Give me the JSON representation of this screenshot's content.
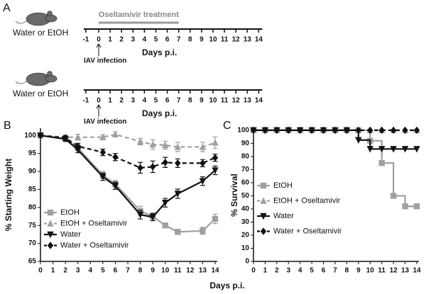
{
  "panel_a": {
    "label": "A",
    "rows": [
      {
        "subject": "Water or EtOH",
        "treatment": "Oseltamivir treatment",
        "treatment_days": [
          0,
          7
        ],
        "infection": "IAV infection",
        "axis_label": "Days p.i.",
        "ticks": [
          -1,
          0,
          1,
          2,
          3,
          4,
          5,
          6,
          7,
          8,
          9,
          10,
          11,
          12,
          13,
          14
        ]
      },
      {
        "subject": "Water or EtOH",
        "infection": "IAV infection",
        "axis_label": "Days p.i.",
        "ticks": [
          -1,
          0,
          1,
          2,
          3,
          4,
          5,
          6,
          7,
          8,
          9,
          10,
          11,
          12,
          13,
          14
        ]
      }
    ]
  },
  "chart_data": [
    {
      "type": "line",
      "panel": "B",
      "y_label": "% Starting Weight",
      "x_label": "Days p.i.",
      "x": [
        0,
        2,
        3,
        5,
        6,
        8,
        9,
        10,
        11,
        13,
        14
      ],
      "xlim": [
        0,
        14
      ],
      "xticks": [
        0,
        1,
        2,
        3,
        4,
        5,
        6,
        7,
        8,
        9,
        10,
        11,
        12,
        13,
        14
      ],
      "ylim": [
        65,
        102
      ],
      "yticks": [
        65,
        70,
        75,
        80,
        85,
        90,
        95,
        100
      ],
      "legend": "lower left",
      "series": [
        {
          "name": "EtOH",
          "color": "#a0a0a0",
          "marker": "square",
          "dash": false,
          "values": [
            100,
            99,
            96.5,
            89,
            86.5,
            79,
            77.5,
            75,
            73.2,
            73.5,
            76.8
          ],
          "errors": [
            0.3,
            0.6,
            0.8,
            1,
            1,
            1.3,
            1,
            0.4,
            0.5,
            1,
            1.3
          ]
        },
        {
          "name": "EtOH + Oseltamivir",
          "color": "#a0a0a0",
          "marker": "triangle-up",
          "dash": true,
          "values": [
            100,
            99.5,
            99.5,
            99.5,
            100.3,
            98.3,
            97.5,
            97.3,
            96.8,
            96.8,
            98
          ],
          "errors": [
            0.3,
            0.6,
            0.8,
            0.7,
            0.7,
            0.9,
            1.3,
            1.1,
            1.3,
            1.3,
            1.6
          ]
        },
        {
          "name": "Water",
          "color": "#111111",
          "marker": "triangle-down",
          "dash": false,
          "values": [
            100,
            99,
            96,
            88.5,
            86,
            78,
            77.3,
            81.3,
            83.8,
            87.3,
            90.3
          ],
          "errors": [
            0.3,
            0.6,
            0.8,
            1,
            1,
            1.2,
            1,
            1.2,
            1.3,
            1.2,
            1.2
          ]
        },
        {
          "name": "Water + Oseltamivir",
          "color": "#111111",
          "marker": "diamond",
          "dash": true,
          "values": [
            100,
            99.3,
            97,
            95.3,
            94,
            91,
            91.3,
            92.5,
            92.3,
            92.3,
            93.8
          ],
          "errors": [
            0.3,
            0.6,
            0.8,
            0.9,
            1,
            1.5,
            1.6,
            1.4,
            1.2,
            1,
            1
          ]
        }
      ]
    },
    {
      "type": "step",
      "panel": "C",
      "y_label": "% Survival",
      "x": [
        0,
        1,
        2,
        3,
        4,
        5,
        6,
        7,
        8,
        9,
        10,
        11,
        12,
        13,
        14
      ],
      "xlim": [
        0,
        14
      ],
      "xticks": [
        0,
        1,
        2,
        3,
        4,
        5,
        6,
        7,
        8,
        9,
        10,
        11,
        12,
        13,
        14
      ],
      "ylim": [
        0,
        101
      ],
      "yticks": [
        0,
        10,
        20,
        30,
        40,
        50,
        60,
        70,
        80,
        90,
        100
      ],
      "legend": "lower left",
      "series": [
        {
          "name": "EtOH",
          "color": "#a0a0a0",
          "marker": "square",
          "dash": false,
          "values": [
            100,
            100,
            100,
            100,
            100,
            100,
            100,
            100,
            100,
            100,
            92,
            75,
            50,
            42,
            42
          ]
        },
        {
          "name": "EtOH + Oseltamivir",
          "color": "#a0a0a0",
          "marker": "triangle-up",
          "dash": true,
          "values": [
            100,
            100,
            100,
            100,
            100,
            100,
            100,
            100,
            100,
            100,
            100,
            100,
            100,
            100,
            100
          ]
        },
        {
          "name": "Water",
          "color": "#111111",
          "marker": "triangle-down",
          "dash": false,
          "values": [
            100,
            100,
            100,
            100,
            100,
            100,
            100,
            100,
            100,
            92.5,
            85.7,
            85.7,
            85.7,
            85.7,
            85.7
          ]
        },
        {
          "name": "Water + Oseltamivir",
          "color": "#111111",
          "marker": "diamond",
          "dash": true,
          "values": [
            100,
            100,
            100,
            100,
            100,
            100,
            100,
            100,
            100,
            100,
            100,
            100,
            100,
            100,
            100
          ]
        }
      ]
    }
  ]
}
